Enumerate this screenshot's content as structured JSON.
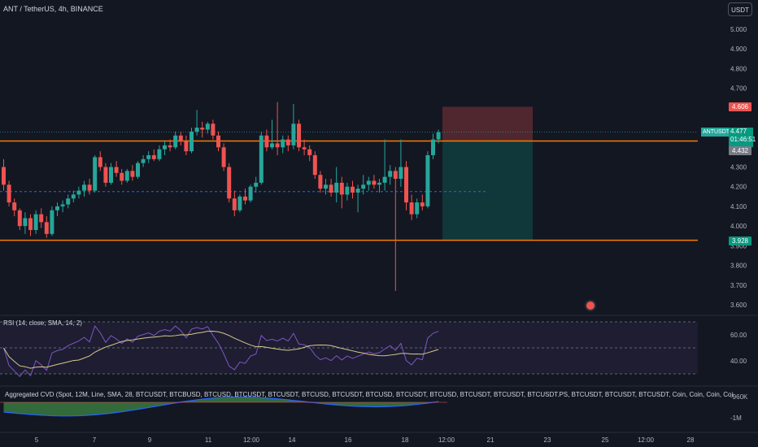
{
  "header": {
    "symbol_title": "ANT / TetherUS, 4h, BINANCE",
    "currency_button": "USDT"
  },
  "price_axis": {
    "ticks": [
      "5.000",
      "4.900",
      "4.800",
      "4.700",
      "4.600",
      "4.300",
      "4.200",
      "4.100",
      "4.000",
      "3.900",
      "3.800",
      "3.700",
      "3.600"
    ],
    "tags": {
      "stop": "4.606",
      "symbol": "ANTUSDT",
      "current_price": "4.477",
      "countdown": "01:46:51",
      "entry": "4.432",
      "target": "3.928"
    }
  },
  "time_axis": {
    "ticks": [
      "5",
      "7",
      "9",
      "11",
      "12:00",
      "14",
      "16",
      "18",
      "12:00",
      "21",
      "23",
      "25",
      "12:00",
      "28"
    ]
  },
  "rsi_panel": {
    "label": "RSI (14, close, SMA, 14, 2)",
    "ticks": [
      "60.00",
      "40.00"
    ]
  },
  "cvd_panel": {
    "label": "Aggregated CVD (Spot, 12M, Line, SMA, 28, BTCUSDT, BTCBUSD, BTCUSD, BTCUSDT, BTCUSDT, BTCUSD, BTCUSDT, BTCUSD, BTCUSDT, BTCUSD, BTCUSDT, BTCUSDT, BTCUSDT.PS, BTCUSDT, BTCUSDT, BTCUSDT, Coin, Coin, Coin, Coin, Coin, Coin, Coin, Coin, USD, USD, Coin, Coin, Coin, Coin, Coin, 1, 1, 1, 1",
    "ticks": [
      "-960K",
      "-1M"
    ]
  },
  "colors": {
    "background": "#131722",
    "up": "#26a69a",
    "down": "#ef5350",
    "level_line": "#f57c00",
    "dashed_line": "#2962ff",
    "rsi_line": "#7e57c2",
    "rsi_sma": "#d8c98a"
  },
  "chart_data": {
    "type": "candlestick",
    "symbol": "ANT / TetherUS",
    "interval": "4h",
    "exchange": "BINANCE",
    "ylim": [
      3.55,
      5.05
    ],
    "resistance_level": 4.432,
    "support_level": 3.928,
    "mid_level": 4.175,
    "position": {
      "side": "short",
      "entry": 4.432,
      "stop": 4.606,
      "target": 3.928
    },
    "candles": [
      [
        4.3,
        4.34,
        4.18,
        4.21
      ],
      [
        4.21,
        4.23,
        4.1,
        4.12
      ],
      [
        4.12,
        4.14,
        4.05,
        4.08
      ],
      [
        4.08,
        4.09,
        3.98,
        4.0
      ],
      [
        4.0,
        4.07,
        3.96,
        4.04
      ],
      [
        4.04,
        4.06,
        3.95,
        3.98
      ],
      [
        3.98,
        4.08,
        3.96,
        4.06
      ],
      [
        4.06,
        4.09,
        3.99,
        4.02
      ],
      [
        4.02,
        4.05,
        3.94,
        3.96
      ],
      [
        3.96,
        4.1,
        3.95,
        4.08
      ],
      [
        4.08,
        4.12,
        4.05,
        4.1
      ],
      [
        4.1,
        4.13,
        4.07,
        4.11
      ],
      [
        4.11,
        4.16,
        4.09,
        4.14
      ],
      [
        4.14,
        4.18,
        4.12,
        4.16
      ],
      [
        4.16,
        4.2,
        4.14,
        4.18
      ],
      [
        4.18,
        4.23,
        4.15,
        4.21
      ],
      [
        4.21,
        4.24,
        4.16,
        4.18
      ],
      [
        4.18,
        4.36,
        4.17,
        4.35
      ],
      [
        4.35,
        4.38,
        4.28,
        4.3
      ],
      [
        4.3,
        4.32,
        4.2,
        4.22
      ],
      [
        4.22,
        4.32,
        4.21,
        4.3
      ],
      [
        4.3,
        4.33,
        4.25,
        4.27
      ],
      [
        4.27,
        4.29,
        4.21,
        4.23
      ],
      [
        4.23,
        4.29,
        4.22,
        4.28
      ],
      [
        4.28,
        4.31,
        4.23,
        4.25
      ],
      [
        4.25,
        4.33,
        4.24,
        4.32
      ],
      [
        4.32,
        4.36,
        4.3,
        4.34
      ],
      [
        4.34,
        4.38,
        4.32,
        4.36
      ],
      [
        4.36,
        4.39,
        4.33,
        4.34
      ],
      [
        4.34,
        4.41,
        4.33,
        4.39
      ],
      [
        4.39,
        4.43,
        4.36,
        4.41
      ],
      [
        4.41,
        4.44,
        4.38,
        4.4
      ],
      [
        4.4,
        4.48,
        4.39,
        4.46
      ],
      [
        4.46,
        4.48,
        4.41,
        4.43
      ],
      [
        4.43,
        4.46,
        4.36,
        4.38
      ],
      [
        4.38,
        4.5,
        4.37,
        4.48
      ],
      [
        4.48,
        4.59,
        4.46,
        4.5
      ],
      [
        4.5,
        4.53,
        4.45,
        4.49
      ],
      [
        4.49,
        4.53,
        4.47,
        4.52
      ],
      [
        4.52,
        4.54,
        4.44,
        4.46
      ],
      [
        4.46,
        4.48,
        4.38,
        4.4
      ],
      [
        4.4,
        4.42,
        4.28,
        4.3
      ],
      [
        4.3,
        4.32,
        4.12,
        4.14
      ],
      [
        4.14,
        4.18,
        4.05,
        4.08
      ],
      [
        4.08,
        4.16,
        4.07,
        4.15
      ],
      [
        4.15,
        4.19,
        4.11,
        4.13
      ],
      [
        4.13,
        4.21,
        4.12,
        4.2
      ],
      [
        4.2,
        4.25,
        4.17,
        4.22
      ],
      [
        4.22,
        4.48,
        4.21,
        4.46
      ],
      [
        4.46,
        4.49,
        4.38,
        4.4
      ],
      [
        4.4,
        4.54,
        4.39,
        4.42
      ],
      [
        4.42,
        4.63,
        4.36,
        4.4
      ],
      [
        4.4,
        4.46,
        4.37,
        4.44
      ],
      [
        4.44,
        4.46,
        4.38,
        4.41
      ],
      [
        4.41,
        4.62,
        4.39,
        4.52
      ],
      [
        4.52,
        4.54,
        4.38,
        4.4
      ],
      [
        4.4,
        4.44,
        4.36,
        4.39
      ],
      [
        4.39,
        4.41,
        4.33,
        4.36
      ],
      [
        4.36,
        4.38,
        4.24,
        4.26
      ],
      [
        4.26,
        4.28,
        4.17,
        4.19
      ],
      [
        4.19,
        4.24,
        4.16,
        4.21
      ],
      [
        4.21,
        4.24,
        4.15,
        4.17
      ],
      [
        4.17,
        4.3,
        4.12,
        4.22
      ],
      [
        4.22,
        4.25,
        4.09,
        4.16
      ],
      [
        4.16,
        4.22,
        4.13,
        4.2
      ],
      [
        4.2,
        4.23,
        4.14,
        4.17
      ],
      [
        4.17,
        4.21,
        4.07,
        4.19
      ],
      [
        4.19,
        4.26,
        4.16,
        4.21
      ],
      [
        4.21,
        4.25,
        4.18,
        4.23
      ],
      [
        4.23,
        4.26,
        4.19,
        4.21
      ],
      [
        4.21,
        4.24,
        4.17,
        4.22
      ],
      [
        4.22,
        4.44,
        4.18,
        4.25
      ],
      [
        4.25,
        4.31,
        4.21,
        4.28
      ],
      [
        4.28,
        4.3,
        3.67,
        4.24
      ],
      [
        4.24,
        4.44,
        4.2,
        4.3
      ],
      [
        4.3,
        4.33,
        4.08,
        4.12
      ],
      [
        4.12,
        4.16,
        4.03,
        4.06
      ],
      [
        4.06,
        4.14,
        4.04,
        4.12
      ],
      [
        4.12,
        4.16,
        4.08,
        4.1
      ],
      [
        4.1,
        4.38,
        4.09,
        4.36
      ],
      [
        4.36,
        4.47,
        4.34,
        4.44
      ],
      [
        4.44,
        4.49,
        4.42,
        4.477
      ]
    ]
  }
}
